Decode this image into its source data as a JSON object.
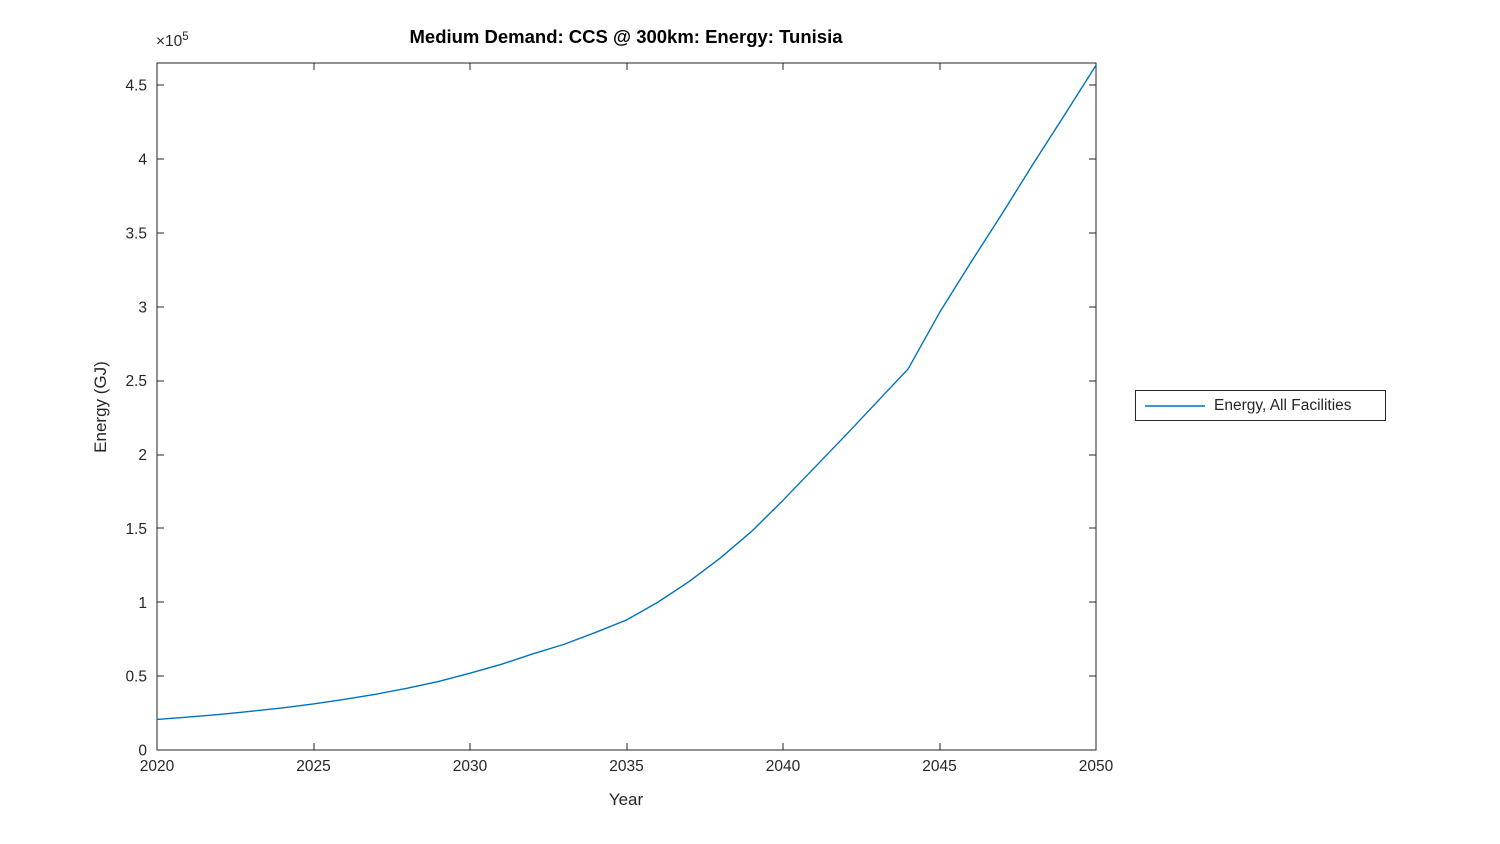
{
  "chart_data": {
    "type": "line",
    "title": "Medium Demand: CCS @ 300km: Energy: Tunisia",
    "xlabel": "Year",
    "ylabel": "Energy (GJ)",
    "y_offset_base": "×10",
    "y_offset_exp": "5",
    "grid": false,
    "box": true,
    "tick_direction": "in",
    "xlim": [
      2020,
      2050
    ],
    "ylim": [
      0,
      465000
    ],
    "x_ticks": [
      2020,
      2025,
      2030,
      2035,
      2040,
      2045,
      2050
    ],
    "x_tick_labels": [
      "2020",
      "2025",
      "2030",
      "2035",
      "2040",
      "2045",
      "2050"
    ],
    "y_ticks": [
      0,
      50000,
      100000,
      150000,
      200000,
      250000,
      300000,
      350000,
      400000,
      450000
    ],
    "y_tick_labels": [
      "0",
      "0.5",
      "1",
      "1.5",
      "2",
      "2.5",
      "3",
      "3.5",
      "4",
      "4.5"
    ],
    "legend_position": "outside-right",
    "colors": {
      "line": "#0072BD",
      "axis": "#262626",
      "title": "#000000",
      "background": "#ffffff"
    },
    "series": [
      {
        "name": "Energy, All Facilities",
        "color": "#0072BD",
        "x": [
          2020,
          2021,
          2022,
          2023,
          2024,
          2025,
          2026,
          2027,
          2028,
          2029,
          2030,
          2031,
          2032,
          2033,
          2034,
          2035,
          2036,
          2037,
          2038,
          2039,
          2040,
          2041,
          2042,
          2043,
          2044,
          2045,
          2046,
          2047,
          2048,
          2049,
          2050
        ],
        "y": [
          20700,
          22300,
          24100,
          26200,
          28500,
          31200,
          34300,
          37800,
          41800,
          46400,
          52000,
          58000,
          65000,
          71500,
          79500,
          88000,
          100000,
          114000,
          130000,
          148000,
          169000,
          191000,
          213000,
          235500,
          258000,
          296000,
          330000,
          363000,
          397000,
          430000,
          463500
        ]
      }
    ],
    "legend": [
      "Energy, All Facilities"
    ]
  }
}
